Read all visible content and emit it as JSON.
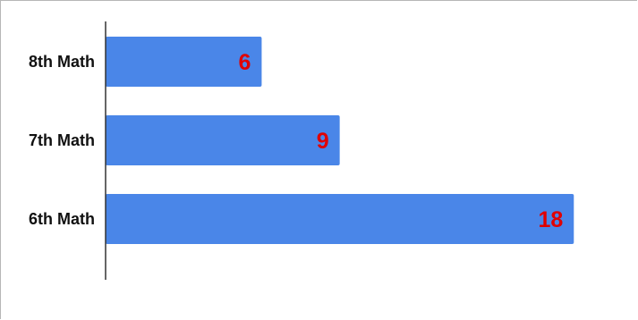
{
  "chart_data": {
    "type": "bar",
    "orientation": "horizontal",
    "title": "",
    "xlabel": "",
    "ylabel": "",
    "categories": [
      "8th Math",
      "7th Math",
      "6th Math"
    ],
    "values": [
      6,
      9,
      18
    ],
    "xlim": [
      0,
      18.3
    ],
    "grid": false,
    "legend": "none",
    "bar_color": "#4a86e8",
    "data_label_color": "#e00000"
  }
}
